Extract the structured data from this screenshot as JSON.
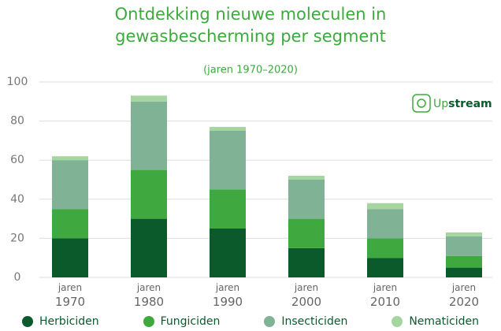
{
  "chart_data": {
    "type": "stacked_bar",
    "title": "Ontdekking nieuwe moleculen in gewasbescherming per segment",
    "subtitle": "(jaren 1970–2020)",
    "logo": [
      "Up",
      "stream"
    ],
    "categories": [
      "jaren 1970",
      "jaren 1980",
      "jaren 1990",
      "jaren 2000",
      "jaren 2010",
      "jaren 2020"
    ],
    "series": [
      {
        "name": "Herbiciden",
        "color": "#0b5a2c",
        "values": [
          20,
          30,
          25,
          15,
          10,
          5
        ]
      },
      {
        "name": "Fungiciden",
        "color": "#3fa83f",
        "values": [
          15,
          25,
          20,
          15,
          10,
          6
        ]
      },
      {
        "name": "Insecticiden",
        "color": "#80b396",
        "values": [
          25,
          35,
          30,
          20,
          15,
          10
        ]
      },
      {
        "name": "Nematiciden",
        "color": "#a6d6a0",
        "values": [
          2,
          3,
          2,
          2,
          3,
          2
        ]
      }
    ],
    "ylim": [
      0,
      100
    ],
    "yticks": [
      0,
      20,
      40,
      60,
      80,
      100
    ],
    "grid": true
  }
}
